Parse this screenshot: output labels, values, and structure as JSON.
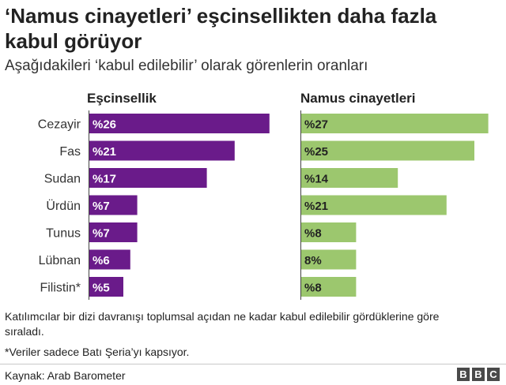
{
  "title": "‘Namus cinayetleri’ eşcinsellikten daha fazla kabul görüyor",
  "subtitle": "Aşağıdakileri ‘kabul edilebilir’ olarak görenlerin oranları",
  "note": "Katılımcılar bir dizi davranışı toplumsal açıdan ne kadar kabul edilebilir gördüklerine göre sıraladı.",
  "footnote": "*Veriler sadece Batı Şeria’yı kapsıyor.",
  "source": "Kaynak: Arab Barometer",
  "logo": [
    "B",
    "B",
    "C"
  ],
  "colors": {
    "left": "#6a1b8a",
    "right": "#9cc76e"
  },
  "chart_data": {
    "type": "bar",
    "orientation": "horizontal",
    "categories": [
      "Cezayir",
      "Fas",
      "Sudan",
      "Ürdün",
      "Tunus",
      "Lübnan",
      "Filistin*"
    ],
    "series": [
      {
        "name": "Eşcinsellik",
        "values": [
          26,
          21,
          17,
          7,
          7,
          6,
          5
        ],
        "labels": [
          "%26",
          "%21",
          "%17",
          "%7",
          "%7",
          "%6",
          "%5"
        ]
      },
      {
        "name": "Namus cinayetleri",
        "values": [
          27,
          25,
          14,
          21,
          8,
          8,
          8
        ],
        "labels": [
          "%27",
          "%25",
          "%14",
          "%21",
          "%8",
          "8%",
          "%8"
        ]
      }
    ]
  }
}
